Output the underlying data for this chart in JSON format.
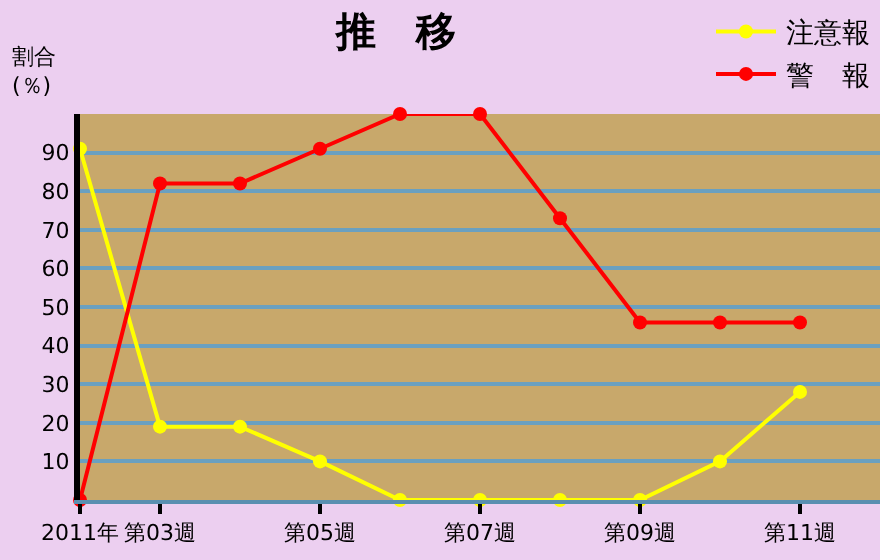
{
  "chart_data": {
    "type": "line",
    "title": "推　移",
    "ylabel": "割合\n(％)",
    "categories": [
      "2011年",
      "第03週",
      null,
      "第05週",
      null,
      "第07週",
      null,
      "第09週",
      null,
      "第11週"
    ],
    "series": [
      {
        "name": "注意報",
        "color": "#ffff00",
        "values": [
          91,
          19,
          19,
          10,
          0,
          0,
          0,
          0,
          10,
          28
        ]
      },
      {
        "name": "警　報",
        "color": "#ff0000",
        "values": [
          0,
          82,
          82,
          91,
          100,
          100,
          73,
          46,
          46,
          46
        ]
      }
    ],
    "ylim": [
      0,
      100
    ],
    "yticks": [
      10,
      20,
      30,
      40,
      50,
      60,
      70,
      80,
      90
    ],
    "grid": "y",
    "legend": "top right",
    "marker": "circle",
    "line_style": "solid"
  }
}
